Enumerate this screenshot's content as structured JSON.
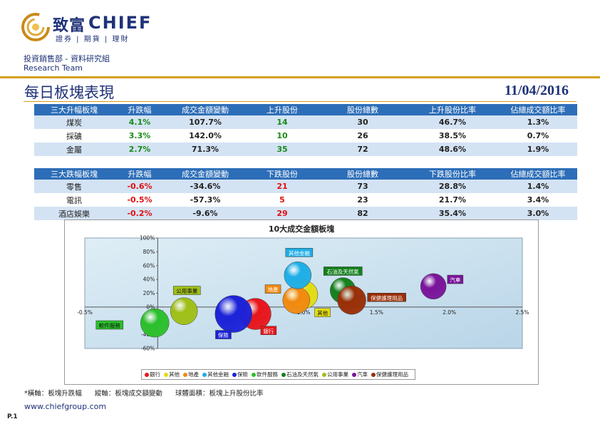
{
  "header": {
    "logo_cn": "致富",
    "logo_en": "CHIEF",
    "logo_sub": "證券 | 期貨 | 理財",
    "dept": "投資銷售部 - 資料研究組",
    "team": "Research Team"
  },
  "title": "每日板塊表現",
  "date": "11/04/2016",
  "up_table": {
    "headers": [
      "三大升幅板塊",
      "升跌幅",
      "成交金額變動",
      "上升股份",
      "股份總數",
      "上升股份比率",
      "佔總成交額比率"
    ],
    "rows": [
      [
        "煤炭",
        "4.1%",
        "107.7%",
        "14",
        "30",
        "46.7%",
        "1.3%"
      ],
      [
        "採礦",
        "3.3%",
        "142.0%",
        "10",
        "26",
        "38.5%",
        "0.7%"
      ],
      [
        "金屬",
        "2.7%",
        "71.3%",
        "35",
        "72",
        "48.6%",
        "1.9%"
      ]
    ]
  },
  "down_table": {
    "headers": [
      "三大跌幅板塊",
      "升跌幅",
      "成交金額變動",
      "下跌股份",
      "股份總數",
      "下跌股份比率",
      "佔總成交額比率"
    ],
    "rows": [
      [
        "零售",
        "-0.6%",
        "-34.6%",
        "21",
        "73",
        "28.8%",
        "1.4%"
      ],
      [
        "電訊",
        "-0.5%",
        "-57.3%",
        "5",
        "23",
        "21.7%",
        "3.4%"
      ],
      [
        "酒店娛樂",
        "-0.2%",
        "-9.6%",
        "29",
        "82",
        "35.4%",
        "3.0%"
      ]
    ]
  },
  "chart_data": {
    "type": "scatter",
    "title": "10大成交金額板塊",
    "xlim": [
      -0.5,
      2.5
    ],
    "ylim": [
      -60,
      100
    ],
    "x_ticks": [
      "-0.5%",
      "0.0%",
      "0.5%",
      "1.0%",
      "1.5%",
      "2.0%",
      "2.5%"
    ],
    "x_tick_values": [
      -0.5,
      0.0,
      0.5,
      1.0,
      1.5,
      2.0,
      2.5
    ],
    "y_ticks": [
      "100%",
      "80%",
      "60%",
      "40%",
      "20%",
      "0%",
      "-20%",
      "-40%",
      "-60%"
    ],
    "y_tick_values": [
      100,
      80,
      60,
      40,
      20,
      0,
      -20,
      -40,
      -60
    ],
    "series": [
      {
        "name": "銀行",
        "x": 0.67,
        "y": -10,
        "r": 22,
        "color": "#e8151b"
      },
      {
        "name": "其他",
        "x": 1.0,
        "y": 18,
        "r": 20,
        "color": "#e3dc12"
      },
      {
        "name": "地產",
        "x": 0.95,
        "y": 10,
        "r": 19,
        "color": "#f08a10"
      },
      {
        "name": "其他金融",
        "x": 0.96,
        "y": 46,
        "r": 19,
        "color": "#1eaee6"
      },
      {
        "name": "保險",
        "x": 0.52,
        "y": -10,
        "r": 26,
        "color": "#1b22d8"
      },
      {
        "name": "軟件服務",
        "x": -0.02,
        "y": -23,
        "r": 20,
        "color": "#2bbf2b"
      },
      {
        "name": "石油及天然氣",
        "x": 1.27,
        "y": 24,
        "r": 18,
        "color": "#14801c"
      },
      {
        "name": "公用事業",
        "x": 0.18,
        "y": -6,
        "r": 19,
        "color": "#9fbf17"
      },
      {
        "name": "汽車",
        "x": 1.89,
        "y": 30,
        "r": 18,
        "color": "#7a1499"
      },
      {
        "name": "保健護理用品",
        "x": 1.33,
        "y": 10,
        "r": 20,
        "color": "#992f07"
      }
    ],
    "labels": [
      {
        "name": "其他金融",
        "lx": 0.97,
        "ly": 77
      },
      {
        "name": "石油及天然氣",
        "lx": 1.27,
        "ly": 50
      },
      {
        "name": "汽車",
        "lx": 2.04,
        "ly": 38
      },
      {
        "name": "公用事業",
        "lx": 0.2,
        "ly": 22
      },
      {
        "name": "地產",
        "lx": 0.79,
        "ly": 24
      },
      {
        "name": "保健護理用品",
        "lx": 1.57,
        "ly": 12
      },
      {
        "name": "其他",
        "lx": 1.13,
        "ly": -10
      },
      {
        "name": "軟件服務",
        "lx": -0.33,
        "ly": -28
      },
      {
        "name": "銀行",
        "lx": 0.76,
        "ly": -36
      },
      {
        "name": "保險",
        "lx": 0.45,
        "ly": -42
      }
    ],
    "legend_position": "bottom",
    "grid": false
  },
  "footer": {
    "note_mark": "*",
    "note": "橫軸：板塊升跌幅      縱軸：板塊成交額變動      球體面積：板塊上升股份比率",
    "website": "www.chiefgroup.com",
    "page": "P.1"
  }
}
